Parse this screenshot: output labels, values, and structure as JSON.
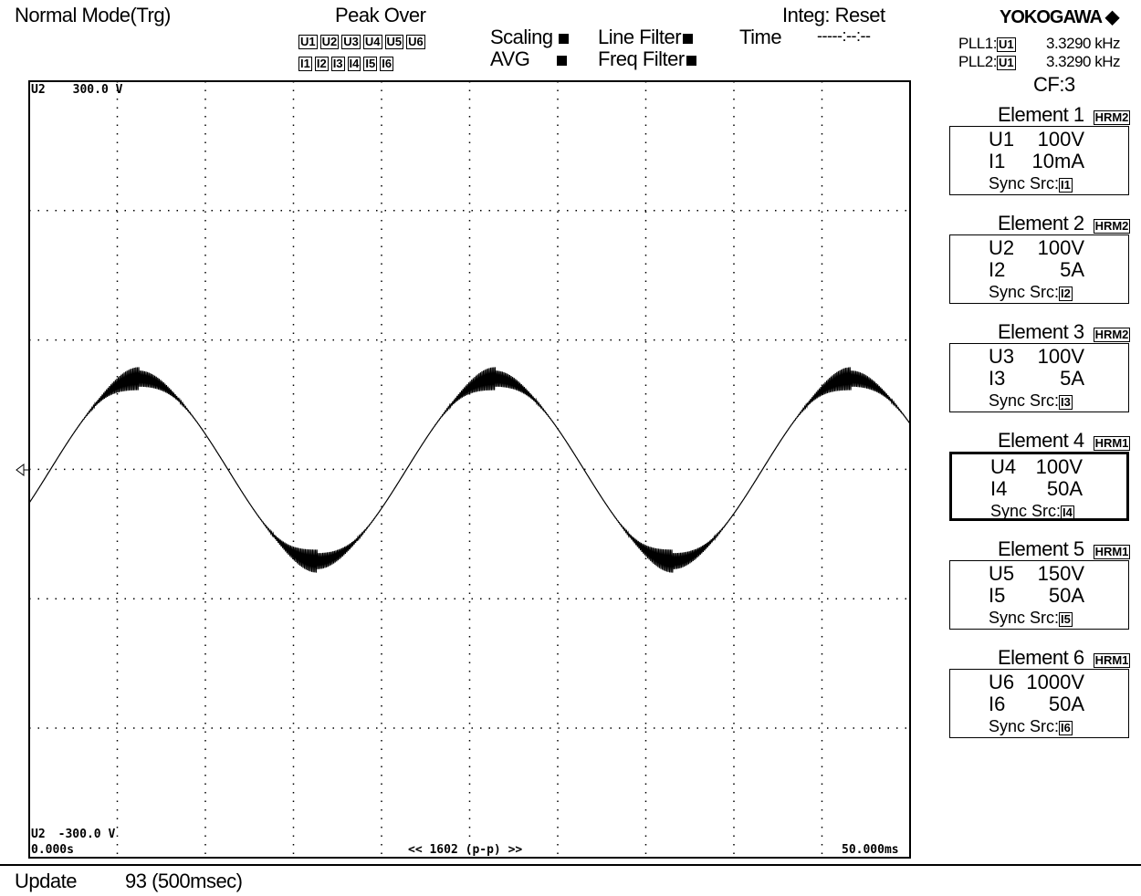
{
  "header": {
    "mode": "Normal Mode(Trg)",
    "peak_over": "Peak Over",
    "u_labels": [
      "U1",
      "U2",
      "U3",
      "U4",
      "U5",
      "U6"
    ],
    "i_labels": [
      "I1",
      "I2",
      "I3",
      "I4",
      "I5",
      "I6"
    ],
    "scaling": "Scaling",
    "avg": "AVG",
    "line_filter": "Line Filter",
    "freq_filter": "Freq Filter",
    "time": "Time",
    "integ": "Integ: Reset",
    "integ_time": "-----:--:--",
    "brand": "YOKOGAWA ◆",
    "pll": [
      {
        "label": "PLL1:",
        "src": "U1",
        "value": "3.3290 kHz"
      },
      {
        "label": "PLL2:",
        "src": "U1",
        "value": "3.3290 kHz"
      }
    ]
  },
  "cf": "CF:3",
  "elements": [
    {
      "title": "Element 1",
      "mode": "HRM2",
      "u_name": "U1",
      "u_range": "100V",
      "i_name": "I1",
      "i_range": "10mA",
      "sync": "Sync Src:",
      "sync_src": "I1"
    },
    {
      "title": "Element 2",
      "mode": "HRM2",
      "u_name": "U2",
      "u_range": "100V",
      "i_name": "I2",
      "i_range": "5A",
      "sync": "Sync Src:",
      "sync_src": "I2"
    },
    {
      "title": "Element 3",
      "mode": "HRM2",
      "u_name": "U3",
      "u_range": "100V",
      "i_name": "I3",
      "i_range": "5A",
      "sync": "Sync Src:",
      "sync_src": "I3"
    },
    {
      "title": "Element 4",
      "mode": "HRM1",
      "u_name": "U4",
      "u_range": "100V",
      "i_name": "I4",
      "i_range": "50A",
      "sync": "Sync Src:",
      "sync_src": "I4"
    },
    {
      "title": "Element 5",
      "mode": "HRM1",
      "u_name": "U5",
      "u_range": "150V",
      "i_name": "I5",
      "i_range": "50A",
      "sync": "Sync Src:",
      "sync_src": "I5"
    },
    {
      "title": "Element 6",
      "mode": "HRM1",
      "u_name": "U6",
      "u_range": "1000V",
      "i_name": "I6",
      "i_range": "50A",
      "sync": "Sync Src:",
      "sync_src": "I6"
    }
  ],
  "wave": {
    "top_label": "U2",
    "top_value": "300.0 V",
    "bottom_label": "U2",
    "bottom_value": "-300.0 V",
    "t_start": "0.000s",
    "center": "<< 1602 (p-p) >>",
    "t_end": "50.000ms"
  },
  "footer": {
    "update": "Update",
    "count": "93 (500msec)"
  }
}
